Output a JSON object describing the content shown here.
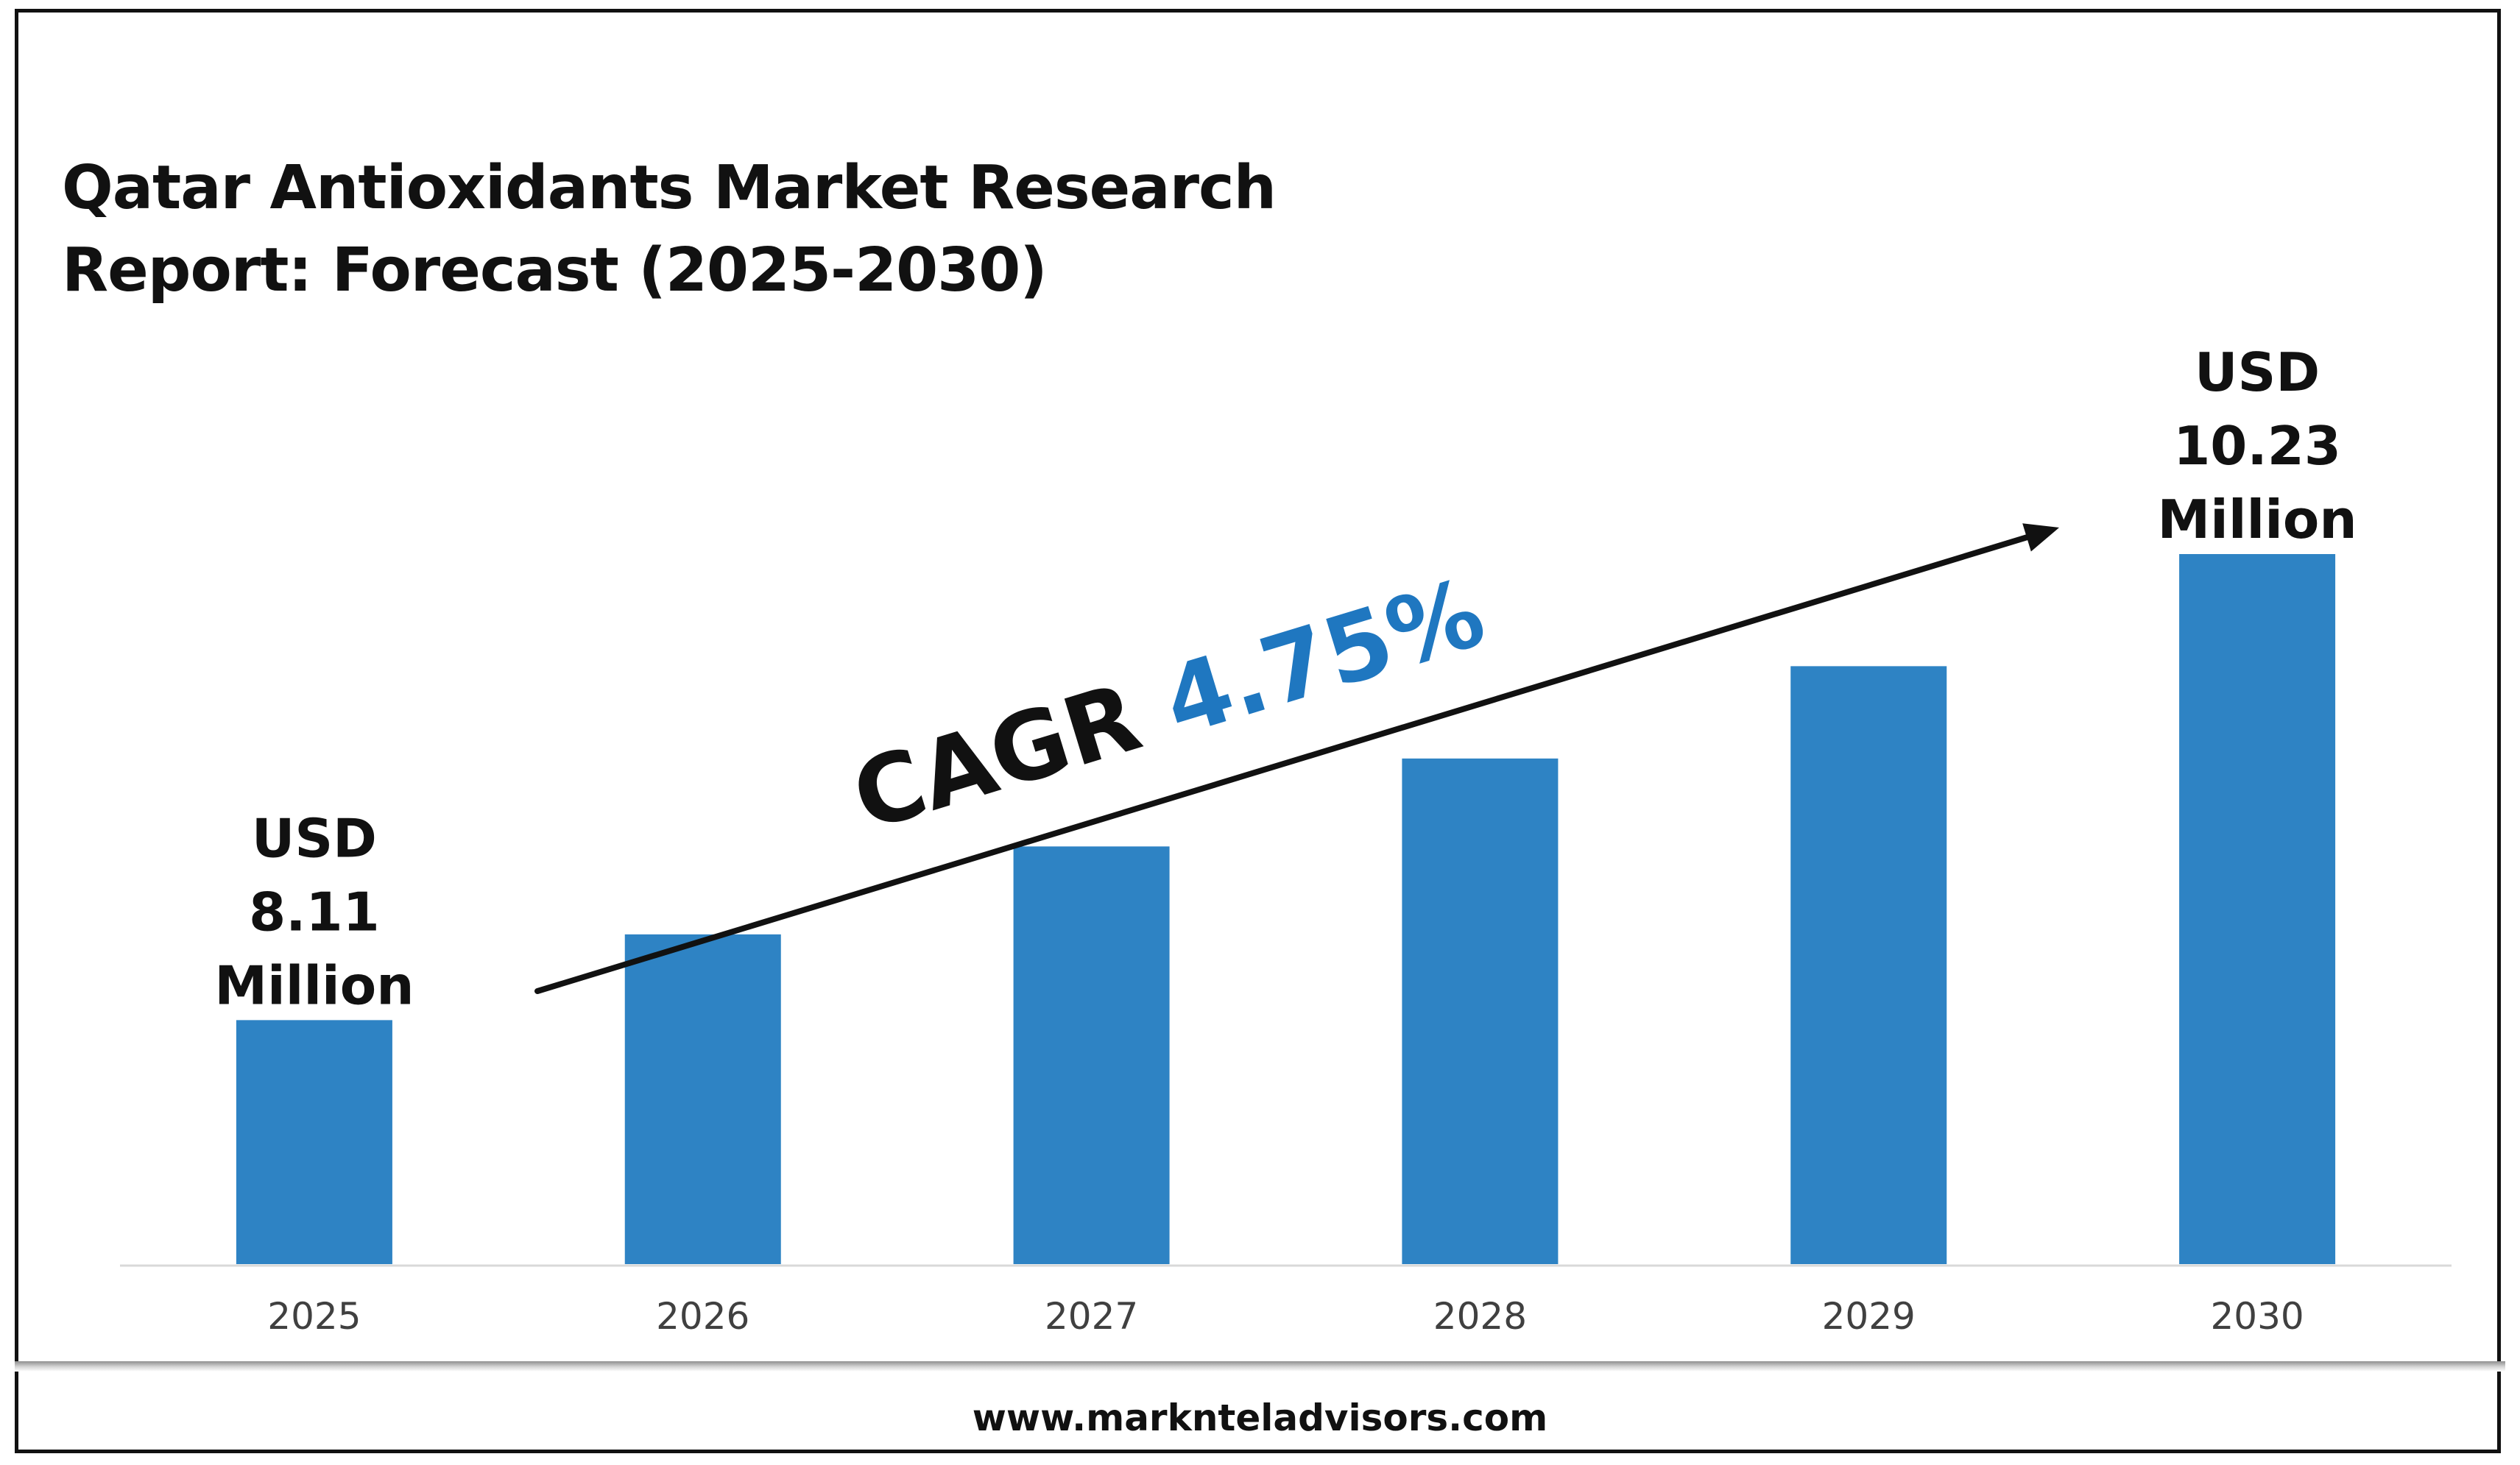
{
  "title_lines": [
    "Qatar Antioxidants Market Research",
    "Report: Forecast (2025-2030)"
  ],
  "footer": {
    "url": "www.marknteladvisors.com"
  },
  "colors": {
    "bar": "#2e83c4",
    "accent": "#1f77c0",
    "text": "#111111",
    "tick": "#404040",
    "baseline": "#d9d9d9"
  },
  "chart_data": {
    "type": "bar",
    "categories": [
      "2025",
      "2026",
      "2027",
      "2028",
      "2029",
      "2030"
    ],
    "values": [
      8.11,
      8.5,
      8.9,
      9.3,
      9.72,
      10.23
    ],
    "ylim": [
      7.0,
      10.23
    ],
    "grid": false,
    "data_labels": [
      {
        "index": 0,
        "lines": [
          "USD",
          "8.11",
          "Million"
        ]
      },
      {
        "index": 5,
        "lines": [
          "USD",
          "10.23",
          "Million"
        ]
      }
    ],
    "annotation": {
      "prefix": "CAGR ",
      "value": "4.75%"
    }
  }
}
